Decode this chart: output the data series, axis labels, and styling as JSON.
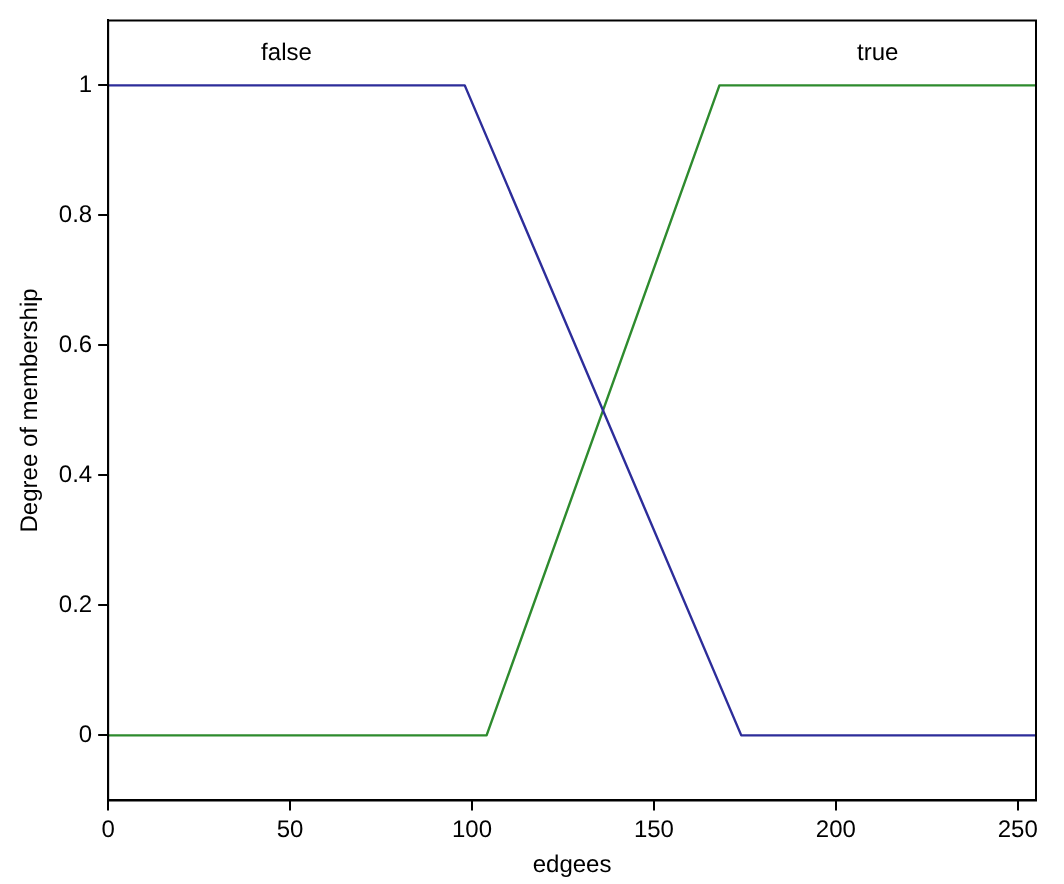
{
  "chart_data": {
    "type": "line",
    "xlabel": "edgees",
    "ylabel": "Degree of membership",
    "xlim": [
      0,
      255
    ],
    "xticks": [
      0,
      50,
      100,
      150,
      200,
      250
    ],
    "ylim": [
      -0.1,
      1.1
    ],
    "yticks": [
      0,
      0.2,
      0.4,
      0.6,
      0.8,
      1
    ],
    "grid": false,
    "legend": false,
    "marker": "none",
    "line_style": "solid",
    "series": [
      {
        "name": "false",
        "color": "#2d2d9a",
        "x": [
          0,
          98,
          174,
          255
        ],
        "values": [
          1,
          1,
          0,
          0
        ]
      },
      {
        "name": "true",
        "color": "#2e8b2e",
        "x": [
          0,
          104,
          168,
          255
        ],
        "values": [
          0,
          0,
          1,
          1
        ]
      }
    ]
  }
}
